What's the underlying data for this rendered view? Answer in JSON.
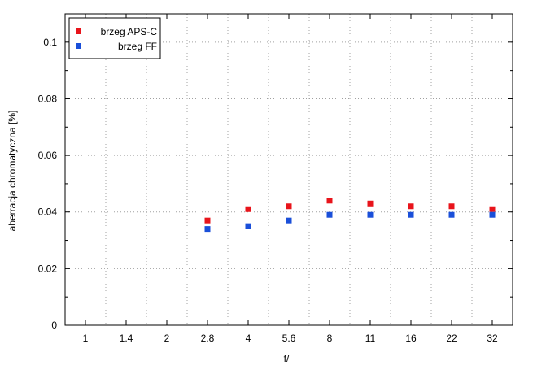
{
  "chart_data": {
    "type": "scatter",
    "categories": [
      "1",
      "1.4",
      "2",
      "2.8",
      "4",
      "5.6",
      "8",
      "11",
      "16",
      "22",
      "32"
    ],
    "ylabel": "aberracja chromatyczna [%]",
    "xlabel": "f/",
    "ylim": [
      0,
      0.11
    ],
    "yticks": [
      0,
      0.02,
      0.04,
      0.06,
      0.08,
      0.1
    ],
    "ytick_labels": [
      "0",
      "0.02",
      "0.04",
      "0.06",
      "0.08",
      "0.1"
    ],
    "grid": true,
    "legend_position": "top-left",
    "series": [
      {
        "name": "brzeg APS-C",
        "color": "#e8141b",
        "values": [
          null,
          null,
          null,
          0.037,
          0.041,
          0.042,
          0.044,
          0.043,
          0.042,
          0.042,
          0.041
        ]
      },
      {
        "name": "brzeg FF",
        "color": "#1a4fd9",
        "values": [
          null,
          null,
          null,
          0.034,
          0.035,
          0.037,
          0.039,
          0.039,
          0.039,
          0.039,
          0.039
        ]
      }
    ]
  }
}
